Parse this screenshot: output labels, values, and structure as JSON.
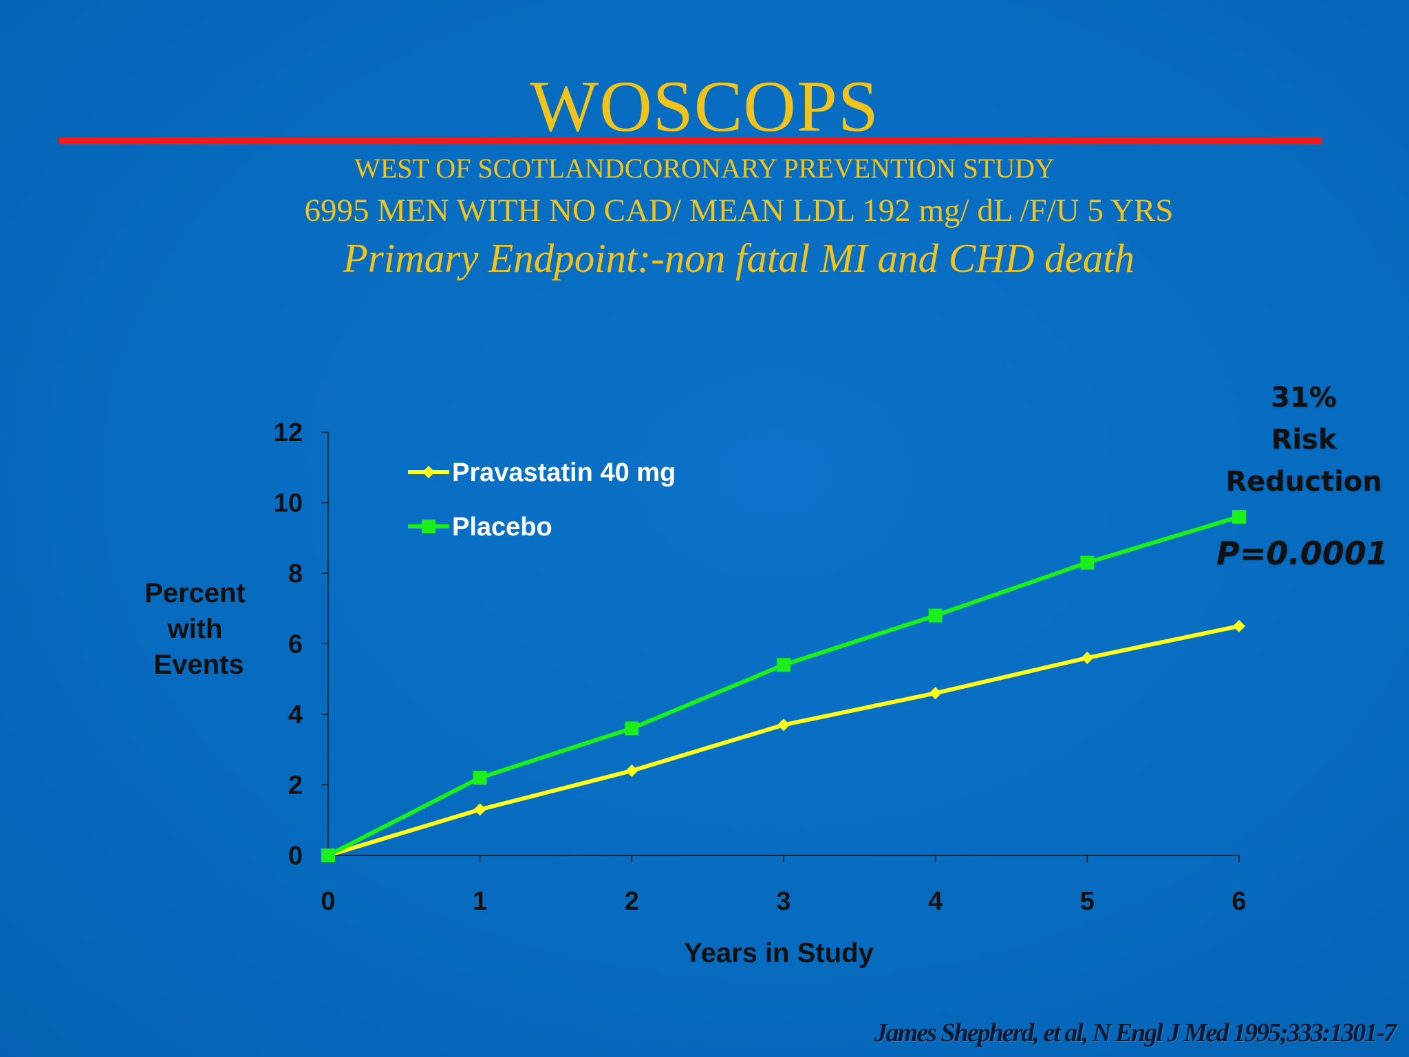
{
  "slide": {
    "title": "WOSCOPS",
    "subtitle_line1": "WEST OF SCOTLANDCORONARY PREVENTION STUDY",
    "subtitle_line2": "6995 MEN WITH NO CAD/ MEAN LDL 192 mg/ dL /F/U 5 YRS",
    "subtitle_line3": "Primary Endpoint:-non fatal MI and CHD death",
    "risk_reduction_lines": [
      "31%",
      "Risk",
      "Reduction"
    ],
    "p_value": "P=0.0001",
    "citation": "James Shepherd, et al, N Engl J Med 1995;333:1301-7"
  },
  "colors": {
    "background": "#0a6fc4",
    "title": "#f2c318",
    "divider": "#ee1c1c",
    "pravastatin": "#ffff1a",
    "placebo": "#1bf01b",
    "axis_text": "#111111"
  },
  "chart_data": {
    "type": "line",
    "title": "",
    "xlabel": "Years in Study",
    "ylabel_lines": [
      "Percent",
      "with",
      "Events"
    ],
    "x": [
      0,
      1,
      2,
      3,
      4,
      5,
      6
    ],
    "xlim": [
      0,
      6
    ],
    "ylim": [
      0,
      12
    ],
    "y_ticks": [
      0,
      2,
      4,
      6,
      8,
      10,
      12
    ],
    "x_ticks": [
      0,
      1,
      2,
      3,
      4,
      5,
      6
    ],
    "grid": false,
    "legend_position": "top-left",
    "series": [
      {
        "name": "Pravastatin 40 mg",
        "marker": "diamond",
        "color": "#ffff1a",
        "values": [
          0,
          1.3,
          2.4,
          3.7,
          4.6,
          5.6,
          6.5
        ]
      },
      {
        "name": "Placebo",
        "marker": "square",
        "color": "#1bf01b",
        "values": [
          0,
          2.2,
          3.6,
          5.4,
          6.8,
          8.3,
          9.6
        ]
      }
    ]
  }
}
